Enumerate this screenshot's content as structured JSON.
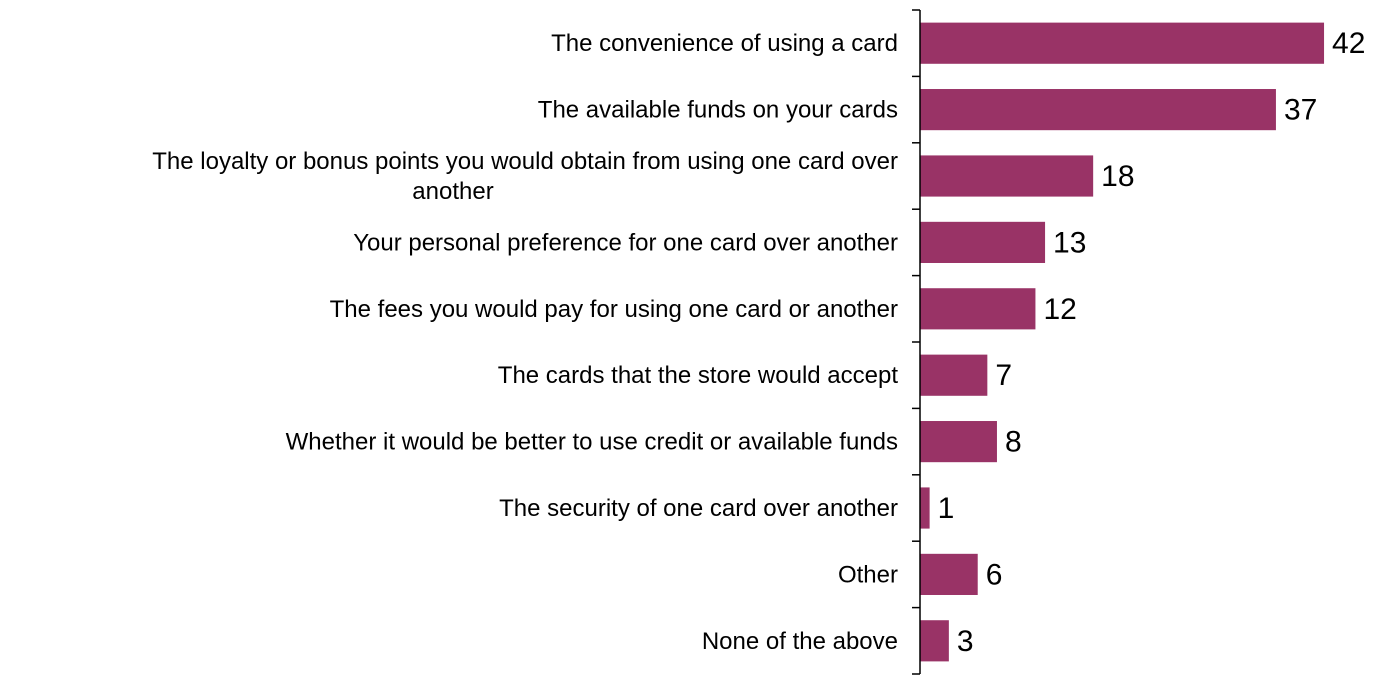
{
  "chart_data": {
    "type": "bar",
    "orientation": "horizontal",
    "title": "",
    "xlabel": "",
    "ylabel": "",
    "categories": [
      [
        "The convenience of using a card"
      ],
      [
        "The available funds on your cards"
      ],
      [
        "The loyalty or bonus points you would obtain from using one card over",
        "another"
      ],
      [
        "Your personal preference for one card over another"
      ],
      [
        "The fees you would pay for using one card or another"
      ],
      [
        "The cards that the store would accept"
      ],
      [
        "Whether it would be better to use credit or available funds"
      ],
      [
        "The security of one card over another"
      ],
      [
        "Other"
      ],
      [
        "None of the above"
      ]
    ],
    "values": [
      42,
      37,
      18,
      13,
      12,
      7,
      8,
      1,
      6,
      3
    ],
    "xlim": [
      0,
      45
    ],
    "grid": false,
    "legend": "none",
    "data_labels": true,
    "colors": {
      "bar": "#993366",
      "axis": "#000000"
    }
  }
}
